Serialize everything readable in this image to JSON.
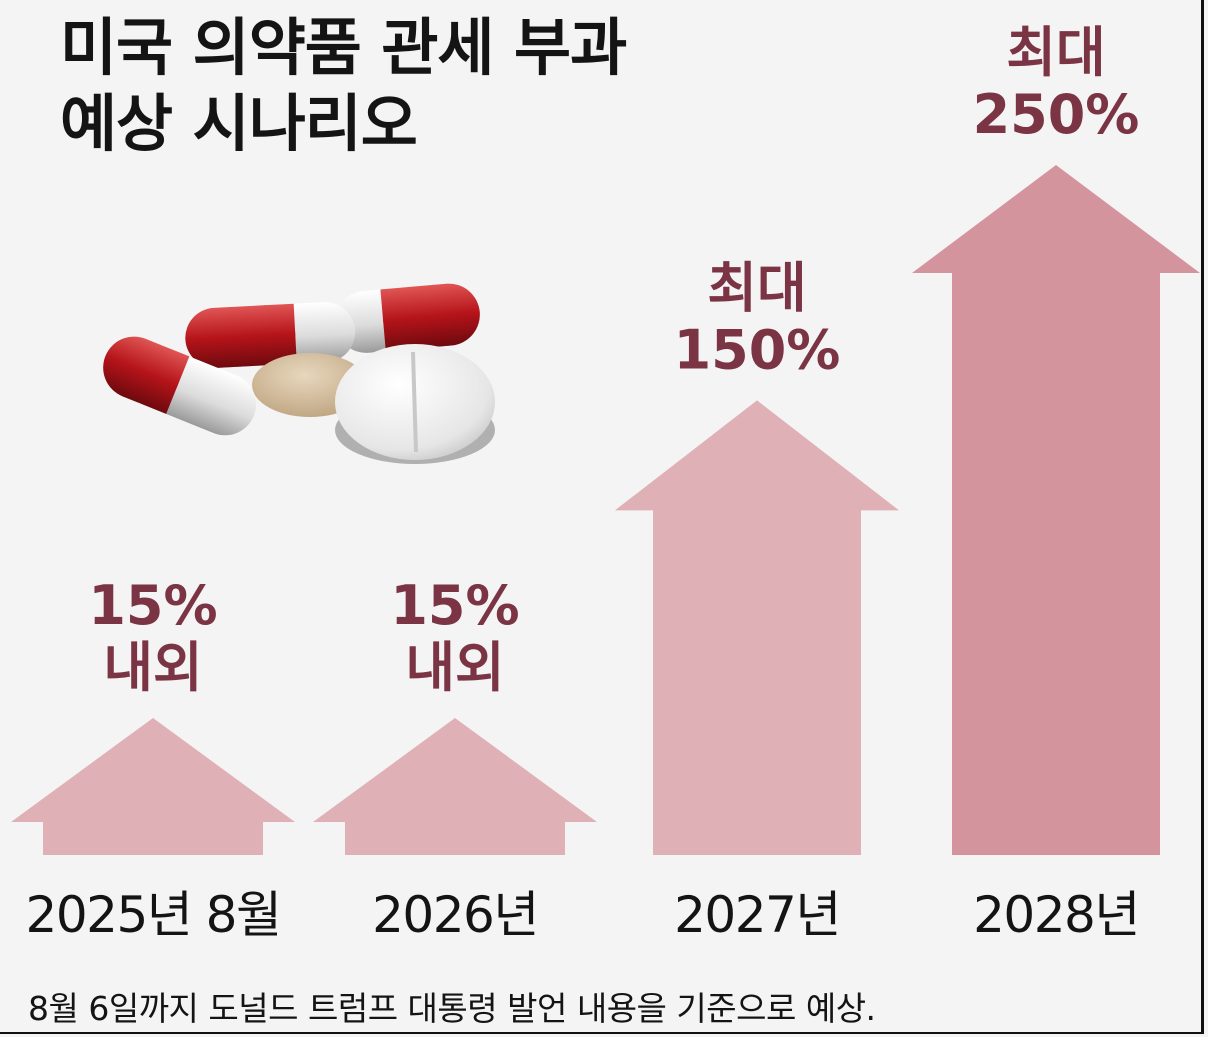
{
  "title_lines": [
    "미국 의약품 관세 부과",
    "예상 시나리오"
  ],
  "footnote": "8월 6일까지 도널드 트럼프 대통령 발언 내용을 기준으로 예상.",
  "colors": {
    "arrow_light": "#dfb0b6",
    "arrow_dark": "#d4949e",
    "label": "#7a3444",
    "category": "#141414"
  },
  "chart_data": {
    "type": "bar",
    "title": "미국 의약품 관세 부과 예상 시나리오",
    "categories": [
      "2025년 8월",
      "2026년",
      "2027년",
      "2028년"
    ],
    "values": [
      15,
      15,
      150,
      250
    ],
    "value_labels": [
      [
        "15%",
        "내외"
      ],
      [
        "15%",
        "내외"
      ],
      [
        "최대",
        "150%"
      ],
      [
        "최대",
        "250%"
      ]
    ],
    "unit": "%",
    "ylim": [
      0,
      250
    ]
  }
}
